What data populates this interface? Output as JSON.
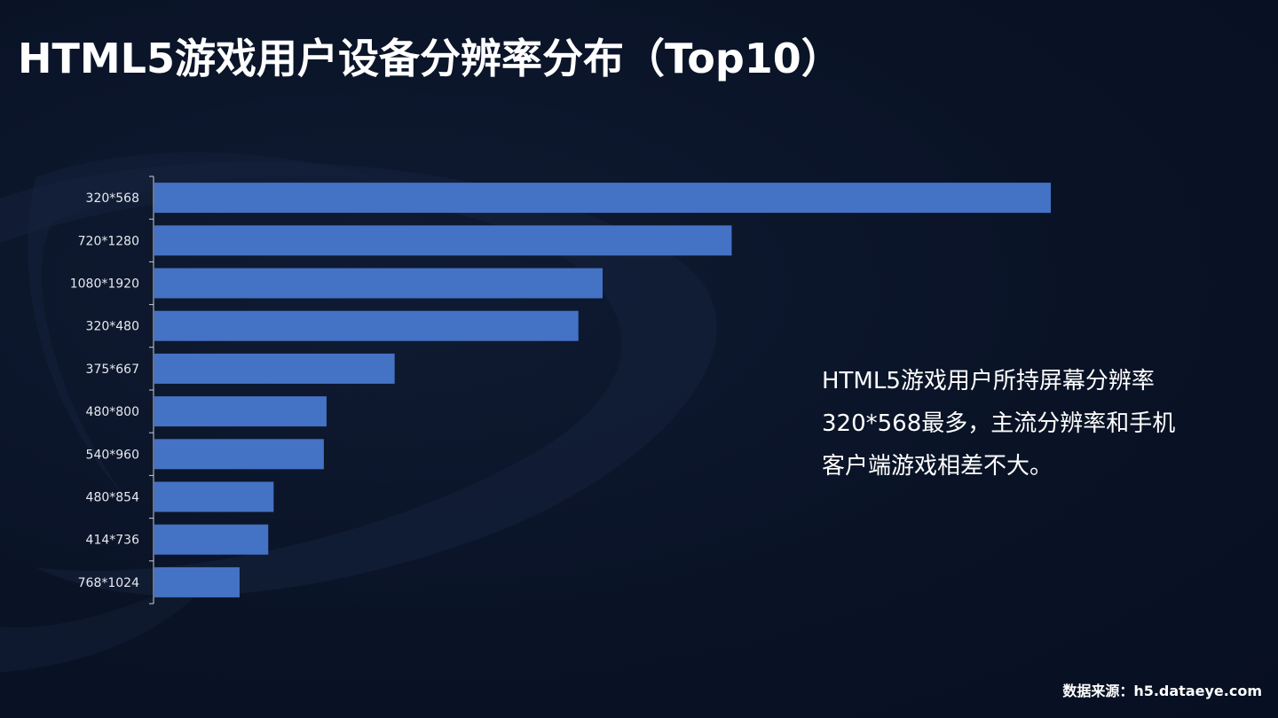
{
  "title": "HTML5游戏用户设备分辨率分布（Top10）",
  "note": "HTML5游戏用户所持屏幕分辨率320*568最多，主流分辨率和手机客户端游戏相差不大。",
  "source": "数据来源：h5.dataeye.com",
  "colors": {
    "background": "#0a1326",
    "bar": "#4472c4",
    "text": "#ffffff",
    "axis": "#c9ced8"
  },
  "chart_data": {
    "type": "bar",
    "orientation": "horizontal",
    "title": "HTML5游戏用户设备分辨率分布（Top10）",
    "xlabel": "",
    "ylabel": "",
    "categories": [
      "320*568",
      "720*1280",
      "1080*1920",
      "320*480",
      "375*667",
      "480*800",
      "540*960",
      "480*854",
      "414*736",
      "768*1024"
    ],
    "values": [
      100,
      64.4,
      50,
      47.3,
      26.8,
      19.2,
      18.9,
      13.3,
      12.7,
      9.5
    ],
    "xlim": [
      0,
      100
    ],
    "grid": false,
    "legend": "none",
    "value_labels_shown": false
  }
}
